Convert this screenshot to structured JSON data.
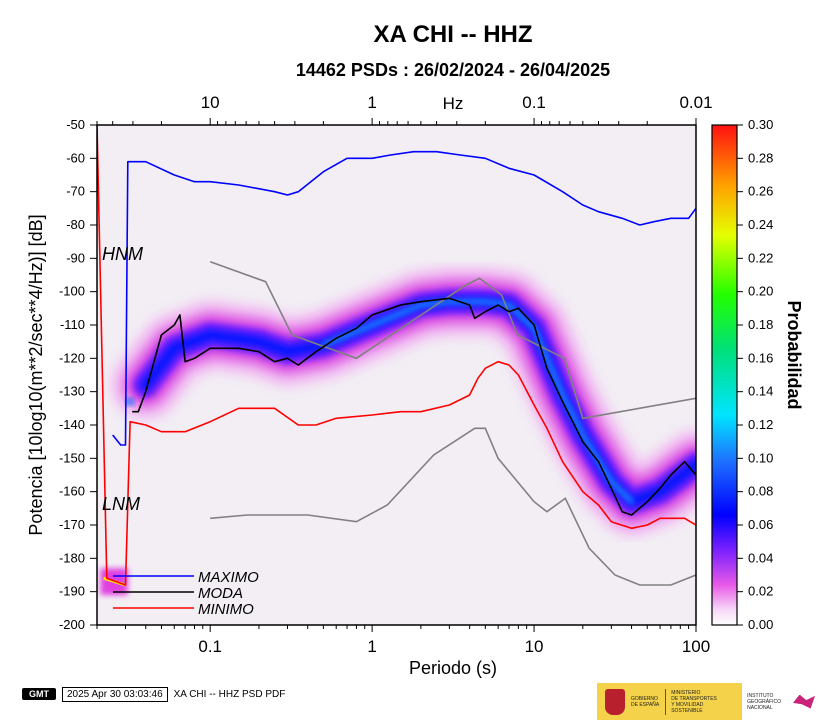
{
  "chart_data": {
    "type": "heatmap",
    "title": "XA CHI -- HHZ",
    "subtitle": "14462 PSDs : 26/02/2024 - 26/04/2025",
    "xlabel": "Periodo (s)",
    "ylabel": "Potencia [10log10(m**2/sec**4/Hz)] [dB]",
    "x_scale": "log",
    "xlim": [
      0.02,
      100
    ],
    "ylim": [
      -200,
      -50
    ],
    "x_ticks": [
      "0.1",
      "1",
      "10",
      "100"
    ],
    "top_axis_label": "Hz",
    "top_ticks": [
      "10",
      "1",
      "0.1",
      "0.01"
    ],
    "y_ticks": [
      "-50",
      "-60",
      "-70",
      "-80",
      "-90",
      "-100",
      "-110",
      "-120",
      "-130",
      "-140",
      "-150",
      "-160",
      "-170",
      "-180",
      "-190",
      "-200"
    ],
    "colorbar": {
      "label": "Probabilidad",
      "range": [
        0,
        0.3
      ],
      "ticks": [
        "0.00",
        "0.02",
        "0.04",
        "0.06",
        "0.08",
        "0.10",
        "0.12",
        "0.14",
        "0.16",
        "0.18",
        "0.20",
        "0.22",
        "0.24",
        "0.26",
        "0.28",
        "0.30"
      ]
    },
    "model_labels": {
      "hnm": "HNM",
      "lnm": "LNM"
    },
    "series": [
      {
        "name": "MAXIMO",
        "color": "#0000ff",
        "points": [
          [
            0.025,
            -143
          ],
          [
            0.028,
            -146
          ],
          [
            0.03,
            -146
          ],
          [
            0.031,
            -61
          ],
          [
            0.04,
            -61
          ],
          [
            0.06,
            -65
          ],
          [
            0.08,
            -67
          ],
          [
            0.1,
            -67
          ],
          [
            0.15,
            -68
          ],
          [
            0.25,
            -70
          ],
          [
            0.3,
            -71
          ],
          [
            0.35,
            -70
          ],
          [
            0.5,
            -64
          ],
          [
            0.7,
            -60
          ],
          [
            1,
            -60
          ],
          [
            1.3,
            -59
          ],
          [
            1.8,
            -58
          ],
          [
            2.5,
            -58
          ],
          [
            3.5,
            -59
          ],
          [
            5,
            -60
          ],
          [
            7,
            -63
          ],
          [
            10,
            -65
          ],
          [
            15,
            -70
          ],
          [
            20,
            -74
          ],
          [
            25,
            -76
          ],
          [
            35,
            -78
          ],
          [
            45,
            -80
          ],
          [
            55,
            -79
          ],
          [
            70,
            -78
          ],
          [
            90,
            -78
          ],
          [
            100,
            -75
          ]
        ]
      },
      {
        "name": "MODA",
        "color": "#000000",
        "points": [
          [
            0.033,
            -136
          ],
          [
            0.036,
            -136
          ],
          [
            0.04,
            -130
          ],
          [
            0.05,
            -113
          ],
          [
            0.06,
            -110
          ],
          [
            0.065,
            -107
          ],
          [
            0.07,
            -121
          ],
          [
            0.08,
            -120
          ],
          [
            0.1,
            -117
          ],
          [
            0.15,
            -117
          ],
          [
            0.2,
            -118
          ],
          [
            0.25,
            -121
          ],
          [
            0.3,
            -120
          ],
          [
            0.35,
            -122
          ],
          [
            0.45,
            -118
          ],
          [
            0.6,
            -114
          ],
          [
            0.8,
            -111
          ],
          [
            1,
            -107
          ],
          [
            1.5,
            -104
          ],
          [
            2,
            -103
          ],
          [
            3,
            -102
          ],
          [
            4,
            -104
          ],
          [
            4.3,
            -108
          ],
          [
            5,
            -106
          ],
          [
            6,
            -104
          ],
          [
            7,
            -106
          ],
          [
            8,
            -105
          ],
          [
            10,
            -110
          ],
          [
            12,
            -123
          ],
          [
            15,
            -133
          ],
          [
            20,
            -145
          ],
          [
            25,
            -151
          ],
          [
            30,
            -159
          ],
          [
            35,
            -166
          ],
          [
            40,
            -167
          ],
          [
            50,
            -163
          ],
          [
            60,
            -159
          ],
          [
            70,
            -155
          ],
          [
            85,
            -151
          ],
          [
            100,
            -155
          ]
        ]
      },
      {
        "name": "MINIMO",
        "color": "#ff0000",
        "points": [
          [
            0.02,
            -50
          ],
          [
            0.023,
            -186
          ],
          [
            0.03,
            -188
          ],
          [
            0.032,
            -139
          ],
          [
            0.04,
            -140
          ],
          [
            0.05,
            -142
          ],
          [
            0.07,
            -142
          ],
          [
            0.1,
            -139
          ],
          [
            0.15,
            -135
          ],
          [
            0.25,
            -135
          ],
          [
            0.35,
            -140
          ],
          [
            0.45,
            -140
          ],
          [
            0.6,
            -138
          ],
          [
            1,
            -137
          ],
          [
            1.5,
            -136
          ],
          [
            2,
            -136
          ],
          [
            3,
            -134
          ],
          [
            4,
            -131
          ],
          [
            4.5,
            -126
          ],
          [
            5,
            -123
          ],
          [
            6,
            -121
          ],
          [
            7,
            -122
          ],
          [
            8,
            -125
          ],
          [
            10,
            -134
          ],
          [
            12,
            -141
          ],
          [
            15,
            -151
          ],
          [
            20,
            -160
          ],
          [
            25,
            -164
          ],
          [
            30,
            -169
          ],
          [
            40,
            -171
          ],
          [
            50,
            -170
          ],
          [
            60,
            -168
          ],
          [
            70,
            -168
          ],
          [
            85,
            -168
          ],
          [
            100,
            -170
          ]
        ]
      }
    ],
    "noise_models": [
      {
        "name": "HNM",
        "color": "#808080",
        "points": [
          [
            0.1,
            -91
          ],
          [
            0.22,
            -97
          ],
          [
            0.32,
            -113
          ],
          [
            0.8,
            -120
          ],
          [
            3.8,
            -98
          ],
          [
            4.6,
            -96
          ],
          [
            6.3,
            -101
          ],
          [
            7.9,
            -113
          ],
          [
            15.4,
            -120
          ],
          [
            20,
            -138
          ],
          [
            100,
            -132
          ]
        ]
      },
      {
        "name": "LNM",
        "color": "#808080",
        "points": [
          [
            0.1,
            -168
          ],
          [
            0.17,
            -167
          ],
          [
            0.4,
            -167
          ],
          [
            0.8,
            -169
          ],
          [
            1.24,
            -164
          ],
          [
            2.4,
            -149
          ],
          [
            4.3,
            -141
          ],
          [
            5,
            -141
          ],
          [
            6,
            -150
          ],
          [
            10,
            -163
          ],
          [
            12,
            -166
          ],
          [
            15.6,
            -162
          ],
          [
            21.9,
            -177
          ],
          [
            31.6,
            -185
          ],
          [
            45,
            -188
          ],
          [
            70,
            -188
          ],
          [
            100,
            -185
          ]
        ]
      }
    ],
    "density_ridge": [
      [
        0.04,
        -128
      ],
      [
        0.06,
        -117
      ],
      [
        0.1,
        -113
      ],
      [
        0.2,
        -115
      ],
      [
        0.3,
        -118
      ],
      [
        0.5,
        -116
      ],
      [
        1,
        -110
      ],
      [
        2,
        -104
      ],
      [
        3,
        -103
      ],
      [
        5,
        -103
      ],
      [
        7,
        -104
      ],
      [
        10,
        -111
      ],
      [
        15,
        -131
      ],
      [
        20,
        -143
      ],
      [
        30,
        -157
      ],
      [
        40,
        -163
      ],
      [
        60,
        -160
      ],
      [
        100,
        -152
      ]
    ],
    "legend_placement": "bottom-left"
  },
  "footer": {
    "logo": "GMT",
    "timestamp": "2025 Apr 30 03:03:46",
    "caption": "XA CHI -- HHZ PSD PDF"
  },
  "banner": {
    "gov1": "GOBIERNO",
    "gov2": "DE ESPAÑA",
    "min1": "MINISTERIO",
    "min2": "DE TRANSPORTES",
    "min3": "Y MOVILIDAD SOSTENIBLE",
    "ign1": "INSTITUTO",
    "ign2": "GEOGRÁFICO",
    "ign3": "NACIONAL",
    "colors": {
      "yellow": "#f4d24a",
      "red": "#b8202d",
      "magenta": "#c9237a"
    }
  }
}
